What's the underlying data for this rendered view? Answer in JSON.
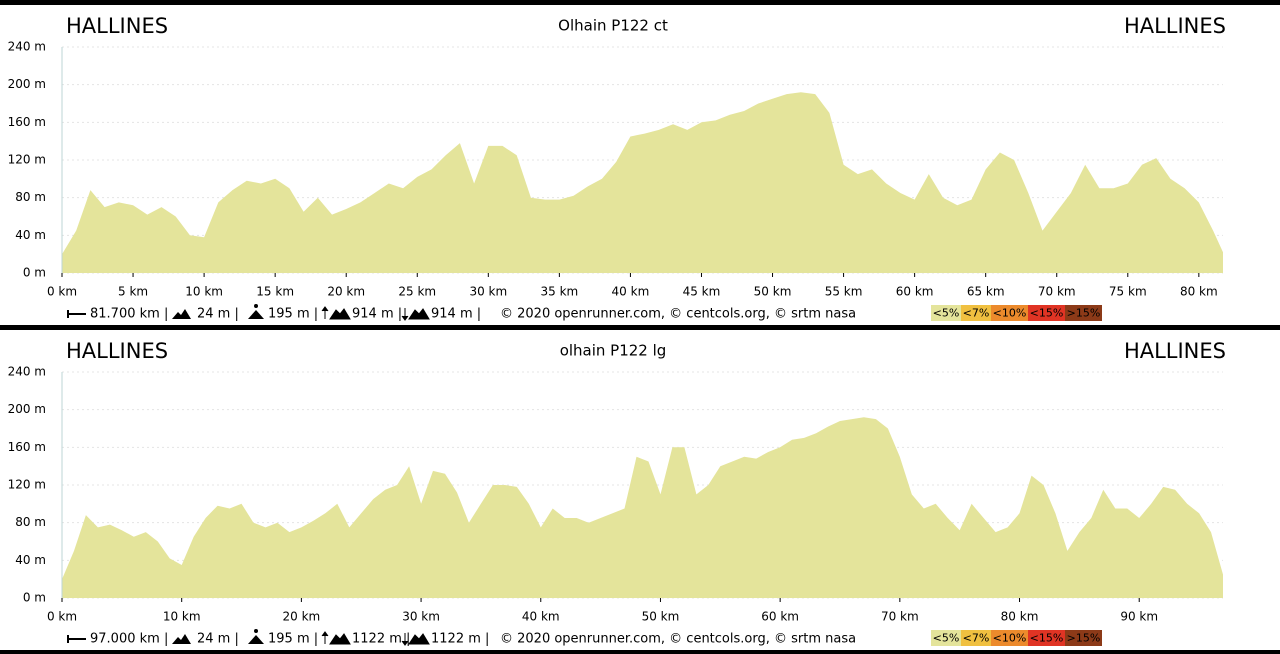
{
  "chart_data": [
    {
      "type": "area",
      "title": "Olhain P122 ct",
      "start_label": "HALLINES",
      "end_label": "HALLINES",
      "x": [
        0,
        1,
        2,
        3,
        4,
        5,
        6,
        7,
        8,
        9,
        10,
        11,
        12,
        13,
        14,
        15,
        16,
        17,
        18,
        19,
        20,
        21,
        22,
        23,
        24,
        25,
        26,
        27,
        28,
        29,
        30,
        31,
        32,
        33,
        34,
        35,
        36,
        37,
        38,
        39,
        40,
        41,
        42,
        43,
        44,
        45,
        46,
        47,
        48,
        49,
        50,
        51,
        52,
        53,
        54,
        55,
        56,
        57,
        58,
        59,
        60,
        61,
        62,
        63,
        64,
        65,
        66,
        67,
        68,
        69,
        70,
        71,
        72,
        73,
        74,
        75,
        76,
        77,
        78,
        79,
        80,
        81,
        81.7
      ],
      "series": [
        {
          "color": "#e4e49b",
          "values": [
            20,
            45,
            88,
            70,
            75,
            72,
            62,
            70,
            60,
            40,
            38,
            75,
            88,
            98,
            95,
            100,
            90,
            65,
            80,
            62,
            68,
            75,
            85,
            95,
            90,
            102,
            110,
            125,
            138,
            95,
            135,
            135,
            125,
            80,
            78,
            78,
            82,
            92,
            100,
            118,
            145,
            148,
            152,
            158,
            152,
            160,
            162,
            168,
            172,
            180,
            185,
            190,
            192,
            190,
            170,
            115,
            105,
            110,
            95,
            85,
            78,
            105,
            80,
            72,
            78,
            110,
            128,
            120,
            85,
            45,
            65,
            85,
            115,
            90,
            90,
            95,
            115,
            122,
            100,
            90,
            75,
            45,
            22
          ]
        }
      ],
      "xlim": [
        0,
        81.7
      ],
      "ylim": [
        0,
        240
      ],
      "xticks": [
        {
          "value": 0,
          "label": "0 km"
        },
        {
          "value": 5,
          "label": "5 km"
        },
        {
          "value": 10,
          "label": "10 km"
        },
        {
          "value": 15,
          "label": "15 km"
        },
        {
          "value": 20,
          "label": "20 km"
        },
        {
          "value": 25,
          "label": "25 km"
        },
        {
          "value": 30,
          "label": "30 km"
        },
        {
          "value": 35,
          "label": "35 km"
        },
        {
          "value": 40,
          "label": "40 km"
        },
        {
          "value": 45,
          "label": "45 km"
        },
        {
          "value": 50,
          "label": "50 km"
        },
        {
          "value": 55,
          "label": "55 km"
        },
        {
          "value": 60,
          "label": "60 km"
        },
        {
          "value": 65,
          "label": "65 km"
        },
        {
          "value": 70,
          "label": "70 km"
        },
        {
          "value": 75,
          "label": "75 km"
        },
        {
          "value": 80,
          "label": "80 km"
        }
      ],
      "yticks": [
        {
          "value": 0,
          "label": "0 m"
        },
        {
          "value": 40,
          "label": "40 m"
        },
        {
          "value": 80,
          "label": "80 m"
        },
        {
          "value": 120,
          "label": "120 m"
        },
        {
          "value": 160,
          "label": "160 m"
        },
        {
          "value": 200,
          "label": "200 m"
        },
        {
          "value": 240,
          "label": "240 m"
        }
      ],
      "grid": true,
      "stats": [
        "81.700 km |",
        "24 m |",
        "195 m |",
        "914 m |",
        "914 m |"
      ],
      "credit": "© 2020 openrunner.com, © centcols.org, © srtm nasa",
      "slope_legend": [
        {
          "label": "<5%",
          "color": "#e4e49b"
        },
        {
          "label": "<7%",
          "color": "#f0c040"
        },
        {
          "label": "<10%",
          "color": "#ec8a2c"
        },
        {
          "label": "<15%",
          "color": "#e03424"
        },
        {
          "label": ">15%",
          "color": "#8c3a18"
        }
      ]
    },
    {
      "type": "area",
      "title": "olhain P122 lg",
      "start_label": "HALLINES",
      "end_label": "HALLINES",
      "x": [
        0,
        1,
        2,
        3,
        4,
        5,
        6,
        7,
        8,
        9,
        10,
        11,
        12,
        13,
        14,
        15,
        16,
        17,
        18,
        19,
        20,
        21,
        22,
        23,
        24,
        25,
        26,
        27,
        28,
        29,
        30,
        31,
        32,
        33,
        34,
        35,
        36,
        37,
        38,
        39,
        40,
        41,
        42,
        43,
        44,
        45,
        46,
        47,
        48,
        49,
        50,
        51,
        52,
        53,
        54,
        55,
        56,
        57,
        58,
        59,
        60,
        61,
        62,
        63,
        64,
        65,
        66,
        67,
        68,
        69,
        70,
        71,
        72,
        73,
        74,
        75,
        76,
        77,
        78,
        79,
        80,
        81,
        82,
        83,
        84,
        85,
        86,
        87,
        88,
        89,
        90,
        91,
        92,
        93,
        94,
        95,
        96,
        97
      ],
      "series": [
        {
          "color": "#e4e49b",
          "values": [
            20,
            50,
            88,
            75,
            78,
            72,
            65,
            70,
            60,
            42,
            35,
            65,
            85,
            98,
            95,
            100,
            80,
            75,
            80,
            70,
            75,
            82,
            90,
            100,
            75,
            90,
            105,
            115,
            120,
            140,
            100,
            135,
            132,
            112,
            80,
            100,
            120,
            120,
            118,
            100,
            75,
            95,
            85,
            85,
            80,
            85,
            90,
            95,
            150,
            145,
            110,
            160,
            160,
            110,
            120,
            140,
            145,
            150,
            148,
            155,
            160,
            168,
            170,
            175,
            182,
            188,
            190,
            192,
            190,
            180,
            150,
            110,
            95,
            100,
            85,
            72,
            100,
            85,
            70,
            75,
            90,
            130,
            120,
            90,
            50,
            70,
            85,
            115,
            95,
            95,
            85,
            100,
            118,
            115,
            100,
            90,
            70,
            25
          ]
        }
      ],
      "xlim": [
        0,
        97
      ],
      "ylim": [
        0,
        240
      ],
      "xticks": [
        {
          "value": 0,
          "label": "0 km"
        },
        {
          "value": 10,
          "label": "10 km"
        },
        {
          "value": 20,
          "label": "20 km"
        },
        {
          "value": 30,
          "label": "30 km"
        },
        {
          "value": 40,
          "label": "40 km"
        },
        {
          "value": 50,
          "label": "50 km"
        },
        {
          "value": 60,
          "label": "60 km"
        },
        {
          "value": 70,
          "label": "70 km"
        },
        {
          "value": 80,
          "label": "80 km"
        },
        {
          "value": 90,
          "label": "90 km"
        }
      ],
      "yticks": [
        {
          "value": 0,
          "label": "0 m"
        },
        {
          "value": 40,
          "label": "40 m"
        },
        {
          "value": 80,
          "label": "80 m"
        },
        {
          "value": 120,
          "label": "120 m"
        },
        {
          "value": 160,
          "label": "160 m"
        },
        {
          "value": 200,
          "label": "200 m"
        },
        {
          "value": 240,
          "label": "240 m"
        }
      ],
      "grid": true,
      "stats": [
        "97.000 km |",
        "24 m |",
        "195 m |",
        "1122 m |",
        "1122 m |"
      ],
      "credit": "© 2020 openrunner.com, © centcols.org, © srtm nasa",
      "slope_legend": [
        {
          "label": "<5%",
          "color": "#e4e49b"
        },
        {
          "label": "<7%",
          "color": "#f0c040"
        },
        {
          "label": "<10%",
          "color": "#ec8a2c"
        },
        {
          "label": "<15%",
          "color": "#e03424"
        },
        {
          "label": ">15%",
          "color": "#8c3a18"
        }
      ]
    }
  ]
}
